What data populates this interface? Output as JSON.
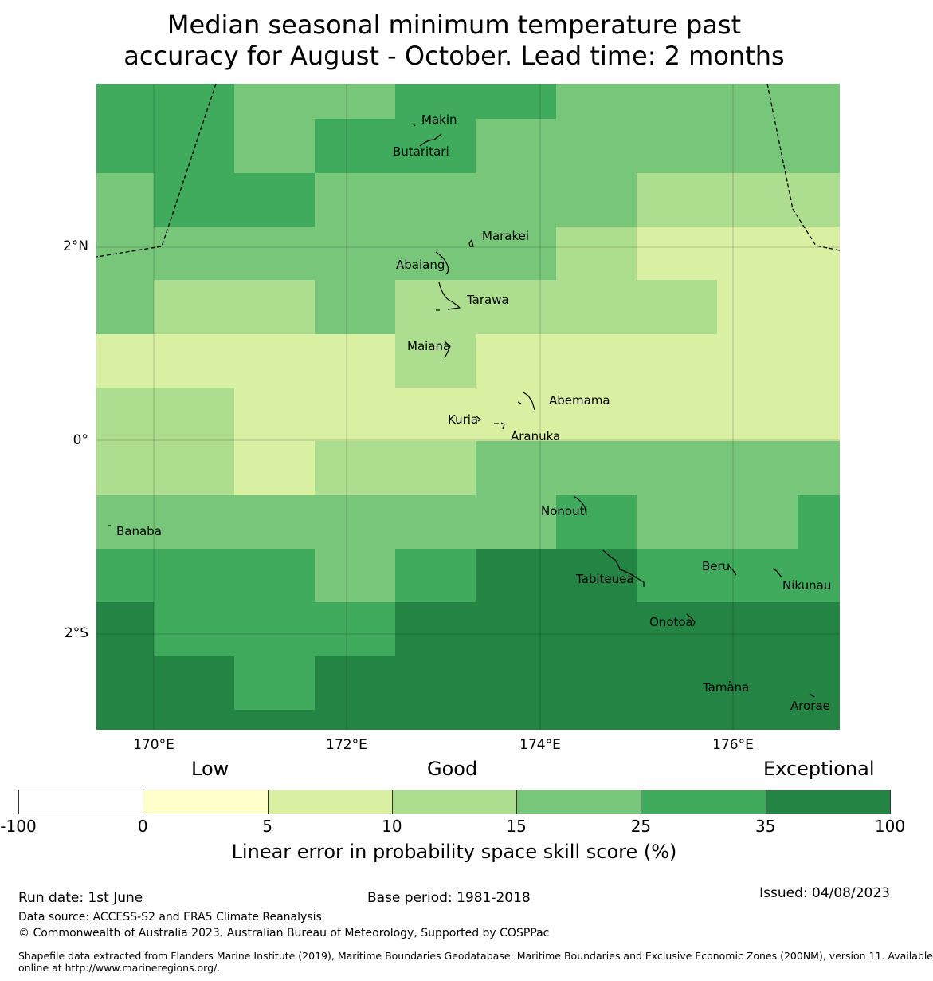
{
  "title": {
    "line1": "Median seasonal minimum temperature past",
    "line2": "accuracy for August - October. Lead time: 2 months"
  },
  "map": {
    "lon_ticks": [
      "170°E",
      "172°E",
      "174°E",
      "176°E"
    ],
    "lat_ticks": [
      "2°N",
      "0°",
      "2°S"
    ],
    "places": [
      "Makin",
      "Butaritari",
      "Marakei",
      "Abaiang",
      "Tarawa",
      "Maiana",
      "Abemama",
      "Kuria",
      "Aranuka",
      "Nonouti",
      "Banaba",
      "Tabiteuea",
      "Beru",
      "Nikunau",
      "Onotoa",
      "Tamana",
      "Arorae"
    ]
  },
  "legend": {
    "categories": [
      "Low",
      "Good",
      "Exceptional"
    ],
    "bins": [
      {
        "from": -100,
        "to": 0,
        "color": "#ffffff"
      },
      {
        "from": 0,
        "to": 5,
        "color": "#ffffcc"
      },
      {
        "from": 5,
        "to": 10,
        "color": "#d9f0a3"
      },
      {
        "from": 10,
        "to": 15,
        "color": "#addd8e"
      },
      {
        "from": 15,
        "to": 25,
        "color": "#78c679"
      },
      {
        "from": 25,
        "to": 35,
        "color": "#41ab5d"
      },
      {
        "from": 35,
        "to": 100,
        "color": "#238443"
      }
    ],
    "ticks": [
      "-100",
      "0",
      "5",
      "10",
      "15",
      "25",
      "35",
      "100"
    ],
    "label": "Linear error in probability space skill score (%)"
  },
  "footer": {
    "run_date": "Run date: 1st June",
    "base_period": "Base period: 1981-2018",
    "issued": "Issued: 04/08/2023",
    "data_source": "Data source: ACCESS-S2 and ERA5 Climate Reanalysis",
    "copyright": "© Commonwealth of Australia 2023, Australian Bureau of Meteorology, Supported by COSPPac",
    "shapefile_line1": "Shapefile data extracted from Flanders Marine Institute (2019), Maritime Boundaries Geodatabase: Maritime Boundaries and Exclusive Economic Zones (200NM), version 11. Available",
    "shapefile_line2": "online at http://www.marineregions.org/."
  }
}
